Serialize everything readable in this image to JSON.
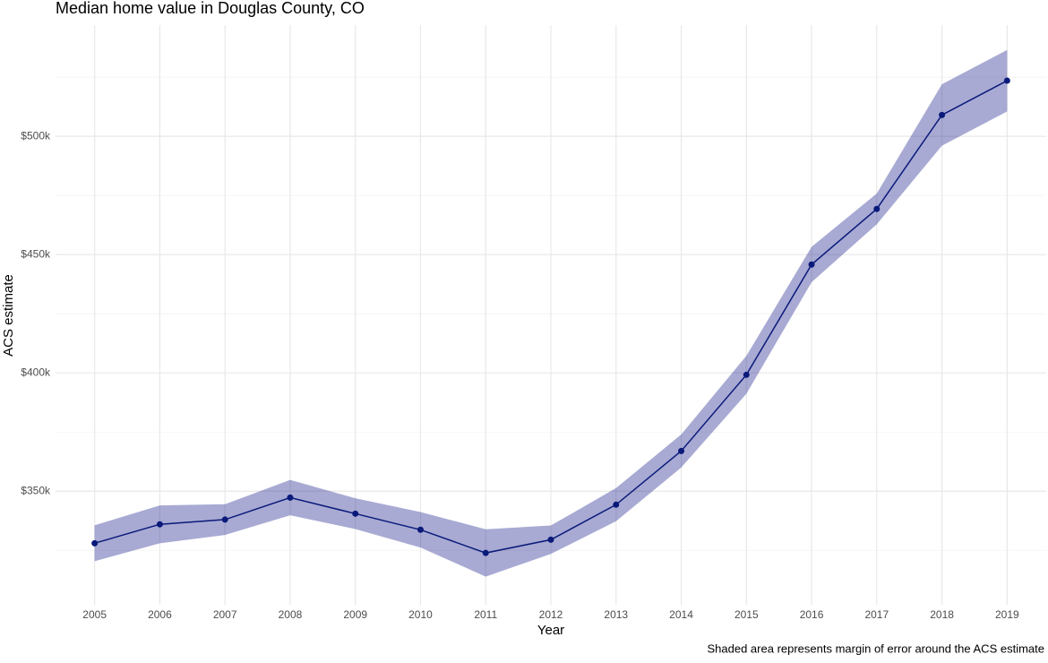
{
  "chart_data": {
    "type": "line",
    "title": "Median home value in Douglas County, CO",
    "x_label": "Year",
    "y_label": "ACS estimate",
    "caption": "Shaded area represents margin of error around the ACS estimate",
    "x": [
      2005,
      2006,
      2007,
      2008,
      2009,
      2010,
      2011,
      2012,
      2013,
      2014,
      2015,
      2016,
      2017,
      2018,
      2019
    ],
    "values": [
      328,
      336,
      338,
      347.3,
      340.5,
      333.7,
      323.9,
      329.5,
      344.3,
      367,
      399.2,
      445.8,
      469.3,
      509,
      523.5
    ],
    "moe": [
      7.6,
      8,
      6.5,
      7.5,
      6.5,
      7.5,
      10,
      6,
      7,
      7,
      8,
      7.5,
      6.5,
      13,
      13
    ],
    "color": "#0a1a7a",
    "band_color": "#1a1f8c",
    "xlim": [
      2004.4,
      2019.6
    ],
    "xticks": [
      2005,
      2006,
      2007,
      2008,
      2009,
      2010,
      2011,
      2012,
      2013,
      2014,
      2015,
      2016,
      2017,
      2018,
      2019
    ],
    "ylim": [
      302,
      547
    ],
    "yticks": [
      {
        "value": 350,
        "label": "$350k"
      },
      {
        "value": 400,
        "label": "$400k"
      },
      {
        "value": 450,
        "label": "$450k"
      },
      {
        "value": 500,
        "label": "$500k"
      }
    ],
    "grid": true,
    "minor_grid": true
  }
}
